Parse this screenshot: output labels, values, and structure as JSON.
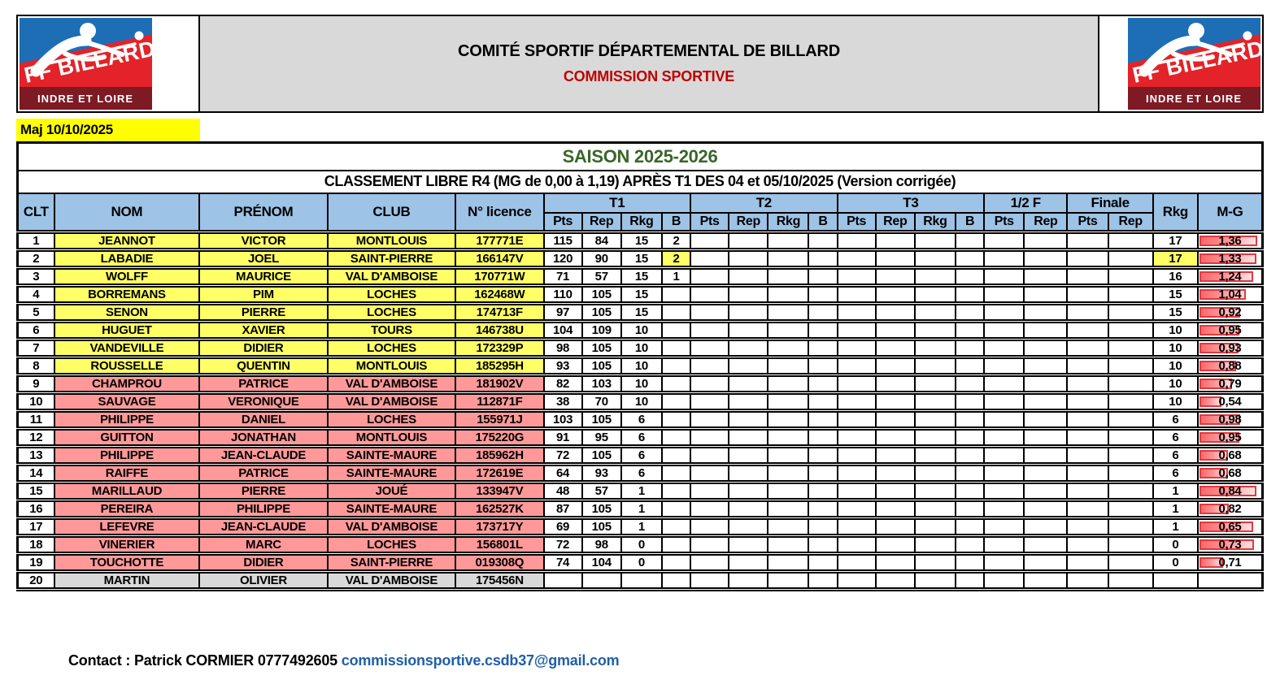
{
  "banner": {
    "title": "COMITÉ SPORTIF DÉPARTEMENTAL DE BILLARD",
    "subtitle": "COMMISSION SPORTIVE",
    "logo_brand": "FF BILLARD",
    "logo_region": "INDRE ET LOIRE"
  },
  "maj_label": "Maj 10/10/2025",
  "table": {
    "season_title": "SAISON 2025-2026",
    "subtitle": "CLASSEMENT LIBRE R4 (MG de 0,00 à 1,19) APRÈS T1 DES 04 et 05/10/2025 (Version corrigée)",
    "head": {
      "clt": "CLT",
      "nom": "NOM",
      "prenom": "PRÉNOM",
      "club": "CLUB",
      "licence": "N° licence",
      "groups": [
        {
          "label": "T1",
          "cols": [
            "Pts",
            "Rep",
            "Rkg",
            "B"
          ]
        },
        {
          "label": "T2",
          "cols": [
            "Pts",
            "Rep",
            "Rkg",
            "B"
          ]
        },
        {
          "label": "T3",
          "cols": [
            "Pts",
            "Rep",
            "Rkg",
            "B"
          ]
        },
        {
          "label": "1/2 F",
          "cols": [
            "Pts",
            "Rep"
          ]
        },
        {
          "label": "Finale",
          "cols": [
            "Pts",
            "Rep"
          ]
        }
      ],
      "rkg": "Rkg",
      "mg": "M-G"
    },
    "rows": [
      {
        "clt": "1",
        "nom": "JEANNOT",
        "prenom": "VICTOR",
        "club": "MONTLOUIS",
        "licence": "177771E",
        "t1": [
          "115",
          "84",
          "15",
          "2"
        ],
        "rkg": "17",
        "mg": "1,36",
        "mg_bar": 0.95,
        "fill": "yellow"
      },
      {
        "clt": "2",
        "nom": "LABADIE",
        "prenom": "JOEL",
        "club": "SAINT-PIERRE",
        "licence": "166147V",
        "t1": [
          "120",
          "90",
          "15",
          "2"
        ],
        "rkg": "17",
        "mg": "1,33",
        "mg_bar": 0.94,
        "fill": "yellow",
        "b_highlight": true,
        "rkg_highlight": true
      },
      {
        "clt": "3",
        "nom": "WOLFF",
        "prenom": "MAURICE",
        "club": "VAL D'AMBOISE",
        "licence": "170771W",
        "t1": [
          "71",
          "57",
          "15",
          "1"
        ],
        "rkg": "16",
        "mg": "1,24",
        "mg_bar": 0.88,
        "fill": "yellow"
      },
      {
        "clt": "4",
        "nom": "BORREMANS",
        "prenom": "PIM",
        "club": "LOCHES",
        "licence": "162468W",
        "t1": [
          "110",
          "105",
          "15",
          ""
        ],
        "rkg": "15",
        "mg": "1,04",
        "mg_bar": 0.77,
        "fill": "yellow"
      },
      {
        "clt": "5",
        "nom": "SENON",
        "prenom": "PIERRE",
        "club": "LOCHES",
        "licence": "174713F",
        "t1": [
          "97",
          "105",
          "15",
          ""
        ],
        "rkg": "15",
        "mg": "0,92",
        "mg_bar": 0.68,
        "fill": "yellow"
      },
      {
        "clt": "6",
        "nom": "HUGUET",
        "prenom": "XAVIER",
        "club": "TOURS",
        "licence": "146738U",
        "t1": [
          "104",
          "109",
          "10",
          ""
        ],
        "rkg": "10",
        "mg": "0,95",
        "mg_bar": 0.66,
        "fill": "yellow"
      },
      {
        "clt": "7",
        "nom": "VANDEVILLE",
        "prenom": "DIDIER",
        "club": "LOCHES",
        "licence": "172329P",
        "t1": [
          "98",
          "105",
          "10",
          ""
        ],
        "rkg": "10",
        "mg": "0,93",
        "mg_bar": 0.65,
        "fill": "yellow"
      },
      {
        "clt": "8",
        "nom": "ROUSSELLE",
        "prenom": "QUENTIN",
        "club": "MONTLOUIS",
        "licence": "185295H",
        "t1": [
          "93",
          "105",
          "10",
          ""
        ],
        "rkg": "10",
        "mg": "0,88",
        "mg_bar": 0.61,
        "fill": "yellow"
      },
      {
        "clt": "9",
        "nom": "CHAMPROU",
        "prenom": "PATRICE",
        "club": "VAL D'AMBOISE",
        "licence": "181902V",
        "t1": [
          "82",
          "103",
          "10",
          ""
        ],
        "rkg": "10",
        "mg": "0,79",
        "mg_bar": 0.55,
        "fill": "pink"
      },
      {
        "clt": "10",
        "nom": "SAUVAGE",
        "prenom": "VERONIQUE",
        "club": "VAL D'AMBOISE",
        "licence": "112871F",
        "t1": [
          "38",
          "70",
          "10",
          ""
        ],
        "rkg": "10",
        "mg": "0,54",
        "mg_bar": 0.38,
        "fill": "pink"
      },
      {
        "clt": "11",
        "nom": "PHILIPPE",
        "prenom": "DANIEL",
        "club": "LOCHES",
        "licence": "155971J",
        "t1": [
          "103",
          "105",
          "6",
          ""
        ],
        "rkg": "6",
        "mg": "0,98",
        "mg_bar": 0.68,
        "fill": "pink"
      },
      {
        "clt": "12",
        "nom": "GUITTON",
        "prenom": "JONATHAN",
        "club": "MONTLOUIS",
        "licence": "175220G",
        "t1": [
          "91",
          "95",
          "6",
          ""
        ],
        "rkg": "6",
        "mg": "0,95",
        "mg_bar": 0.66,
        "fill": "pink"
      },
      {
        "clt": "13",
        "nom": "PHILIPPE",
        "prenom": "JEAN-CLAUDE",
        "club": "SAINTE-MAURE",
        "licence": "185962H",
        "t1": [
          "72",
          "105",
          "6",
          ""
        ],
        "rkg": "6",
        "mg": "0,68",
        "mg_bar": 0.48,
        "fill": "pink"
      },
      {
        "clt": "14",
        "nom": "RAIFFE",
        "prenom": "PATRICE",
        "club": "SAINTE-MAURE",
        "licence": "172619E",
        "t1": [
          "64",
          "93",
          "6",
          ""
        ],
        "rkg": "6",
        "mg": "0,68",
        "mg_bar": 0.48,
        "fill": "pink"
      },
      {
        "clt": "15",
        "nom": "MARILLAUD",
        "prenom": "PIERRE",
        "club": "JOUÉ",
        "licence": "133947V",
        "t1": [
          "48",
          "57",
          "1",
          ""
        ],
        "rkg": "1",
        "mg": "0,84",
        "mg_bar": 0.93,
        "fill": "pink"
      },
      {
        "clt": "16",
        "nom": "PEREIRA",
        "prenom": "PHILIPPE",
        "club": "SAINTE-MAURE",
        "licence": "162527K",
        "t1": [
          "87",
          "105",
          "1",
          ""
        ],
        "rkg": "1",
        "mg": "0,82",
        "mg_bar": 0.5,
        "fill": "pink"
      },
      {
        "clt": "17",
        "nom": "LEFEVRE",
        "prenom": "JEAN-CLAUDE",
        "club": "VAL D'AMBOISE",
        "licence": "173717Y",
        "t1": [
          "69",
          "105",
          "1",
          ""
        ],
        "rkg": "1",
        "mg": "0,65",
        "mg_bar": 0.88,
        "fill": "pink"
      },
      {
        "clt": "18",
        "nom": "VINERIER",
        "prenom": "MARC",
        "club": "LOCHES",
        "licence": "156801L",
        "t1": [
          "72",
          "98",
          "0",
          ""
        ],
        "rkg": "0",
        "mg": "0,73",
        "mg_bar": 0.9,
        "fill": "pink"
      },
      {
        "clt": "19",
        "nom": "TOUCHOTTE",
        "prenom": "DIDIER",
        "club": "SAINT-PIERRE",
        "licence": "019308Q",
        "t1": [
          "74",
          "104",
          "0",
          ""
        ],
        "rkg": "0",
        "mg": "0,71",
        "mg_bar": 0.4,
        "fill": "pink"
      },
      {
        "clt": "20",
        "nom": "MARTIN",
        "prenom": "OLIVIER",
        "club": "VAL D'AMBOISE",
        "licence": "175456N",
        "t1": [
          "",
          "",
          "",
          ""
        ],
        "rkg": "",
        "mg": "",
        "mg_bar": 0,
        "fill": "gray"
      }
    ]
  },
  "footer": {
    "contact": "Contact : Patrick CORMIER 0777492605",
    "email": "commissionsportive.csdb37@gmail.com"
  },
  "colors": {
    "header_blue": "#9DC3E6",
    "row_yellow": "#FFFF66",
    "row_pink": "#FF9999",
    "row_gray": "#D9D9D9",
    "maj_yellow": "#FFFF00",
    "season_green": "#3A6629",
    "accent_red": "#C00000",
    "databar_red": "#F8696B",
    "link_blue": "#1F5FA9",
    "logo_blue": "#1E6EB5",
    "logo_red": "#E32329",
    "logo_maroon": "#7E1A23"
  }
}
